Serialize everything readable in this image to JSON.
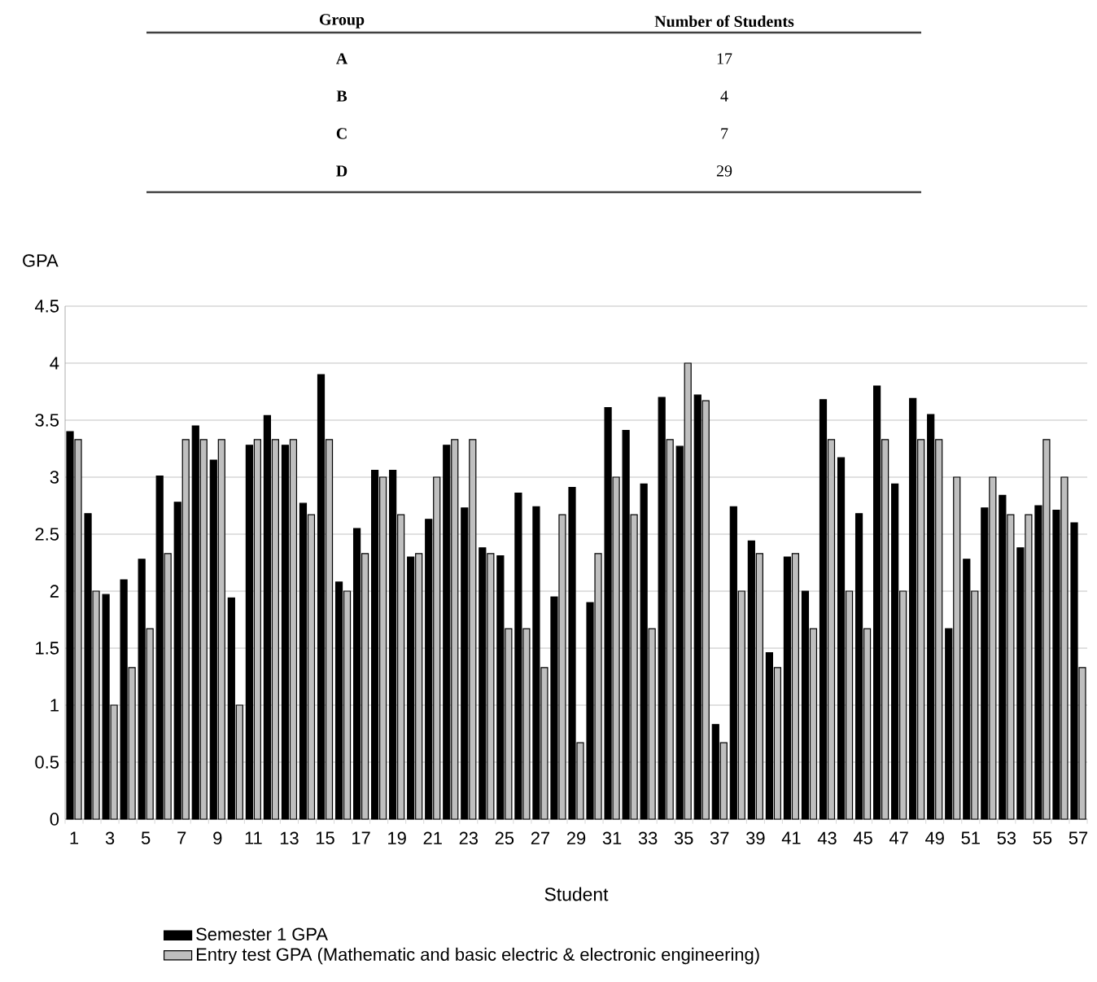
{
  "chart_data": [
    {
      "type": "other",
      "annotations": [
        "Group",
        "Number of Students",
        "A",
        "17",
        "B",
        "4",
        "C",
        "7",
        "D",
        "29"
      ]
    },
    {
      "type": "bar",
      "ylabel": "GPA",
      "xlabel": "Student",
      "categories": [
        "1",
        null,
        "3",
        null,
        "5",
        null,
        "7",
        null,
        "9",
        null,
        "11",
        null,
        "13",
        null,
        "15",
        null,
        "17",
        null,
        "19",
        null,
        "21",
        null,
        "23",
        null,
        "25",
        null,
        "27",
        null,
        "29",
        null,
        "31",
        null,
        "33",
        null,
        "35",
        null,
        "37",
        null,
        "39",
        null,
        "41",
        null,
        "43",
        null,
        "45",
        null,
        "47",
        null,
        "49",
        null,
        "51",
        null,
        "53",
        null,
        "55",
        null,
        "57"
      ],
      "series": [
        {
          "name": "Semester 1 GPA",
          "color": "#000000",
          "values": [
            3.4,
            2.68,
            1.97,
            2.1,
            2.28,
            3.01,
            2.78,
            3.45,
            3.15,
            1.94,
            3.28,
            3.54,
            3.28,
            2.77,
            3.9,
            2.08,
            2.55,
            3.06,
            3.06,
            2.3,
            2.63,
            3.28,
            2.73,
            2.38,
            2.31,
            2.86,
            2.74,
            1.95,
            2.91,
            1.9,
            3.61,
            3.41,
            2.94,
            3.7,
            3.27,
            3.72,
            0.83,
            2.74,
            2.44,
            1.46,
            2.3,
            2.0,
            3.68,
            3.17,
            2.68,
            3.8,
            2.94,
            3.69,
            3.55,
            1.67,
            2.28,
            2.73,
            2.84,
            2.38,
            2.75,
            2.71,
            2.6
          ]
        },
        {
          "name": "Entry test GPA (Mathematic and basic electric & electronic engineering)",
          "color": "#bfbfbf",
          "values": [
            3.33,
            2.0,
            1.0,
            1.33,
            1.67,
            2.33,
            3.33,
            3.33,
            3.33,
            1.0,
            3.33,
            3.33,
            3.33,
            2.67,
            3.33,
            2.0,
            2.33,
            3.0,
            2.67,
            2.33,
            3.0,
            3.33,
            3.33,
            2.33,
            1.67,
            1.67,
            1.33,
            2.67,
            0.67,
            2.33,
            3.0,
            2.67,
            1.67,
            3.33,
            4.0,
            3.67,
            0.67,
            2.0,
            2.33,
            1.33,
            2.33,
            1.67,
            3.33,
            2.0,
            1.67,
            3.33,
            2.0,
            3.33,
            3.33,
            3.0,
            2.0,
            3.0,
            2.67,
            2.67,
            3.33,
            3.0,
            1.33
          ]
        }
      ],
      "ylim": [
        0,
        4.5
      ],
      "yticks": [
        0,
        0.5,
        1,
        1.5,
        2,
        2.5,
        3,
        3.5,
        4,
        4.5
      ],
      "grid": "y",
      "legend": "bottom"
    }
  ]
}
